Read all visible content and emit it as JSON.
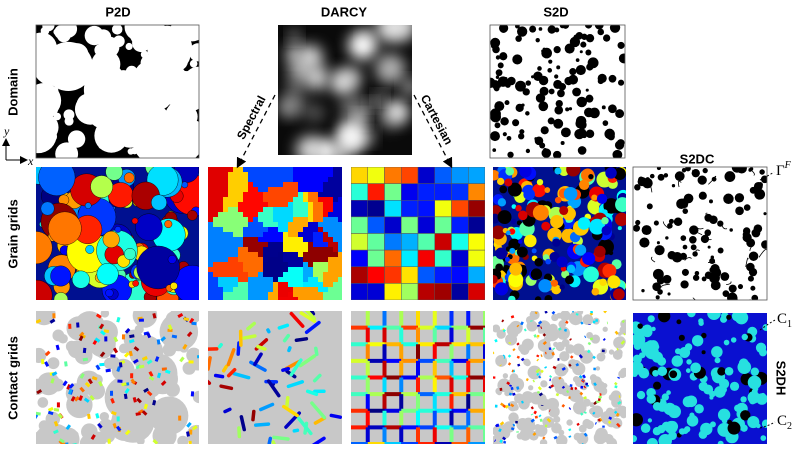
{
  "columns": {
    "p2d": "P2D",
    "darcy": "DARCY",
    "s2d": "S2D",
    "s2dc": "S2DC",
    "s2dh": "S2DH"
  },
  "rows": {
    "domain": "Domain",
    "grain": "Grain grids",
    "contact": "Contact grids"
  },
  "arrows": {
    "spectral": "Spectral",
    "cartesian": "Cartesian"
  },
  "axes": {
    "y": "y",
    "x": "x"
  },
  "annotations": {
    "gamma": {
      "base": "Γ",
      "sup": "F"
    },
    "c1": {
      "base": "C",
      "sub": "1"
    },
    "c2": {
      "base": "C",
      "sub": "2"
    }
  }
}
